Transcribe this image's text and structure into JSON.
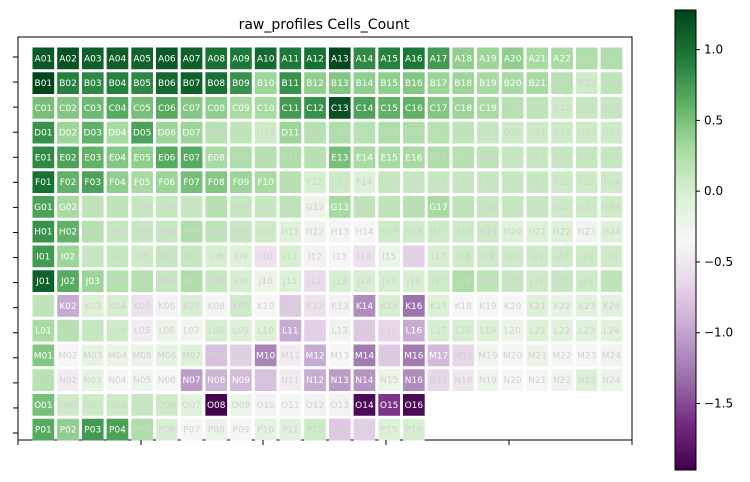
{
  "chart_data": {
    "type": "heatmap",
    "title": "raw_profiles Cells_Count",
    "rows": [
      "A",
      "B",
      "C",
      "D",
      "E",
      "F",
      "G",
      "H",
      "I",
      "J",
      "K",
      "L",
      "M",
      "N",
      "O",
      "P"
    ],
    "cols": [
      1,
      2,
      3,
      4,
      5,
      6,
      7,
      8,
      9,
      10,
      11,
      12,
      13,
      14,
      15,
      16,
      17,
      18,
      19,
      20,
      21,
      22,
      23,
      24
    ],
    "colormap": "PRGn",
    "vmin": -1.97,
    "vmax": 1.28,
    "colorbar_ticks": [
      1.0,
      0.5,
      0.0,
      -0.5,
      -1.0,
      -1.5
    ],
    "colorbar_tick_labels": [
      "1.0",
      "0.5",
      "0.0",
      "−0.5",
      "−1.0",
      "−1.5"
    ],
    "grid": false,
    "values": [
      [
        1.15,
        1.2,
        1.1,
        1.12,
        1.08,
        1.15,
        1.1,
        1.0,
        0.95,
        1.05,
        0.95,
        1.0,
        1.25,
        0.85,
        0.9,
        0.95,
        0.75,
        0.4,
        0.35,
        0.4,
        0.3,
        0.3,
        0.25,
        0.25
      ],
      [
        1.28,
        0.9,
        0.85,
        0.9,
        0.85,
        1.05,
        1.1,
        1.0,
        0.8,
        0.35,
        0.8,
        0.4,
        0.45,
        0.4,
        0.4,
        0.45,
        0.35,
        0.35,
        0.3,
        0.3,
        0.3,
        0.2,
        0.05,
        0.15
      ],
      [
        0.5,
        0.45,
        0.55,
        0.65,
        0.5,
        0.65,
        0.45,
        0.4,
        0.3,
        0.3,
        0.75,
        0.8,
        1.2,
        0.7,
        0.6,
        0.6,
        0.45,
        0.35,
        0.3,
        0.2,
        0.15,
        0.05,
        0.1,
        0.1
      ],
      [
        0.8,
        0.35,
        0.6,
        0.3,
        0.7,
        0.35,
        0.35,
        0.2,
        0.15,
        0.05,
        0.35,
        0.2,
        0.25,
        0.2,
        0.25,
        0.25,
        0.2,
        0.15,
        0.1,
        0.05,
        0.05,
        0.05,
        0.05,
        0.05
      ],
      [
        0.85,
        0.7,
        0.6,
        0.45,
        0.4,
        0.65,
        0.65,
        0.3,
        0.25,
        0.2,
        0.25,
        0.2,
        0.5,
        0.3,
        0.3,
        0.3,
        0.25,
        0.2,
        0.15,
        0.1,
        0.1,
        0.1,
        0.1,
        0.1
      ],
      [
        1.0,
        0.6,
        0.7,
        0.4,
        0.3,
        0.35,
        0.5,
        0.45,
        0.35,
        0.3,
        0.2,
        0.0,
        0.05,
        -0.05,
        0.1,
        0.1,
        0.1,
        0.1,
        0.1,
        0.1,
        0.1,
        0.05,
        0.05,
        0.05
      ],
      [
        0.7,
        0.3,
        0.15,
        0.15,
        0.1,
        0.1,
        0.1,
        0.2,
        0.1,
        0.1,
        0.15,
        -0.2,
        0.3,
        0.15,
        0.15,
        0.2,
        0.3,
        0.15,
        0.1,
        0.1,
        0.1,
        0.05,
        0.05,
        0.05
      ],
      [
        0.8,
        0.6,
        0.2,
        0.1,
        0.1,
        0.1,
        0.25,
        0.15,
        0.1,
        0.05,
        -0.1,
        -0.25,
        -0.3,
        -0.35,
        0.05,
        0.05,
        0.05,
        0.05,
        0.05,
        -0.05,
        -0.05,
        -0.05,
        -0.25,
        -0.05
      ],
      [
        0.75,
        0.35,
        0.1,
        0.1,
        0.05,
        0.1,
        0.1,
        0.0,
        -0.05,
        -0.55,
        0.0,
        -0.4,
        -0.35,
        -0.55,
        -0.2,
        -0.7,
        0.0,
        0.05,
        0.05,
        0.05,
        0.05,
        0.05,
        0.05,
        0.05
      ],
      [
        1.1,
        0.65,
        0.35,
        0.2,
        0.2,
        0.1,
        0.25,
        0.1,
        0.0,
        -0.2,
        -0.05,
        -0.6,
        0.0,
        0.0,
        0.0,
        0.0,
        0.05,
        0.25,
        0.15,
        0.1,
        0.05,
        0.1,
        0.05,
        0.15
      ],
      [
        0.15,
        -0.95,
        -0.05,
        0.0,
        -0.55,
        -0.4,
        0.0,
        -0.3,
        0.05,
        -0.35,
        -0.75,
        -0.55,
        -0.4,
        -1.15,
        0.0,
        -1.3,
        -0.05,
        -0.35,
        -0.3,
        -0.35,
        -0.05,
        -0.15,
        -0.1,
        -0.1
      ],
      [
        0.3,
        0.2,
        0.1,
        0.05,
        -0.45,
        -0.2,
        -0.25,
        0.0,
        -0.05,
        -0.05,
        -0.95,
        -0.7,
        -0.25,
        -0.75,
        -0.65,
        -0.95,
        0.0,
        0.0,
        -0.05,
        -0.2,
        -0.05,
        -0.1,
        -0.1,
        -0.1
      ],
      [
        0.45,
        -0.35,
        -0.15,
        -0.2,
        -0.2,
        -0.15,
        -0.05,
        -0.8,
        -0.7,
        -1.2,
        -0.45,
        -0.95,
        -0.35,
        -1.25,
        -0.75,
        -1.25,
        -0.85,
        -0.65,
        -0.25,
        -0.3,
        -0.2,
        -0.3,
        -0.35,
        -0.25
      ],
      [
        0.2,
        -0.45,
        -0.15,
        -0.3,
        -0.25,
        -0.3,
        -1.05,
        -0.9,
        -0.85,
        -0.8,
        -0.45,
        -0.95,
        -1.05,
        -1.1,
        -0.2,
        -1.15,
        -0.65,
        -0.5,
        -0.25,
        -0.35,
        -0.3,
        -0.25,
        -0.05,
        -0.2
      ],
      [
        0.5,
        0.05,
        0.05,
        0.05,
        0.1,
        0.05,
        -0.1,
        -1.95,
        -0.2,
        -0.4,
        -0.3,
        -0.4,
        -0.4,
        -1.9,
        -1.6,
        -1.9,
        null,
        null,
        null,
        null,
        null,
        null,
        null,
        null
      ],
      [
        0.65,
        0.4,
        0.75,
        0.7,
        0.25,
        0.0,
        -0.3,
        -0.2,
        -0.3,
        -0.15,
        -0.1,
        0.05,
        -0.75,
        -0.7,
        -0.05,
        0.0,
        null,
        null,
        null,
        null,
        null,
        null,
        null,
        null
      ]
    ]
  }
}
